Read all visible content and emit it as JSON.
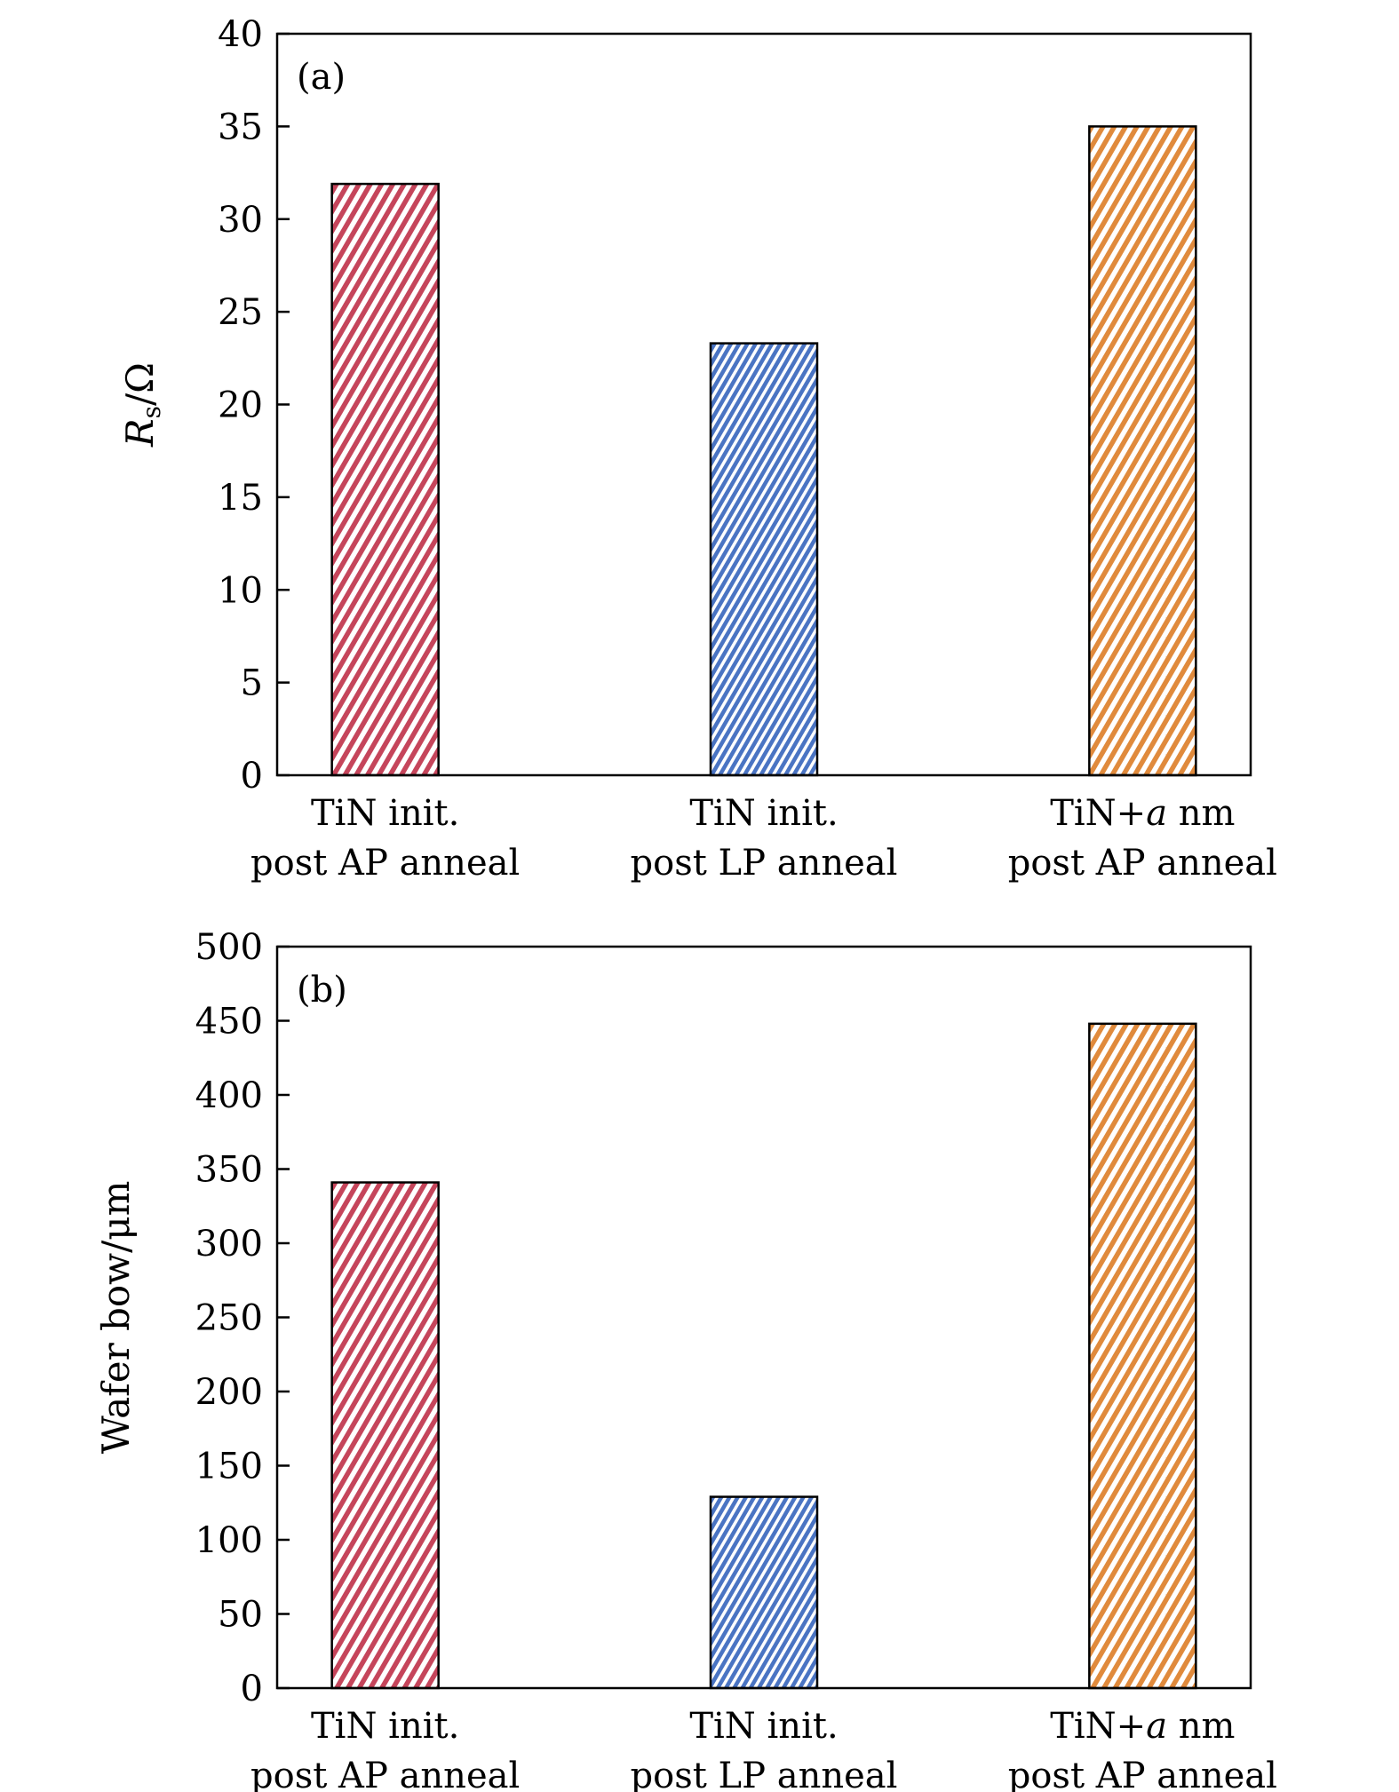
{
  "chart_data": [
    {
      "type": "bar",
      "panel_label": "(a)",
      "ylabel": "Rs/Ω",
      "ylabel_parts": {
        "symbol": "R",
        "subscript": "s",
        "unit": "/Ω"
      },
      "categories": [
        {
          "line1": "TiN init.",
          "line2": "post AP anneal"
        },
        {
          "line1": "TiN init.",
          "line2": "post LP anneal"
        },
        {
          "line1": "TiN+a nm",
          "line2": "post AP anneal"
        }
      ],
      "values": [
        31.9,
        23.3,
        35.0
      ],
      "colors": [
        "#c5455b",
        "#4a74c3",
        "#e08a3c"
      ],
      "hatch": [
        "diagonal",
        "diagonal-dense",
        "diagonal"
      ],
      "ylim": [
        0,
        40
      ],
      "yticks": [
        "0",
        "5",
        "10",
        "15",
        "20",
        "25",
        "30",
        "35",
        "40"
      ],
      "grid": false
    },
    {
      "type": "bar",
      "panel_label": "(b)",
      "ylabel": "Wafer bow/μm",
      "categories": [
        {
          "line1": "TiN init.",
          "line2": "post AP anneal"
        },
        {
          "line1": "TiN init.",
          "line2": "post LP anneal"
        },
        {
          "line1": "TiN+a nm",
          "line2": "post AP anneal"
        }
      ],
      "values": [
        341,
        129,
        448
      ],
      "colors": [
        "#c5455b",
        "#4a74c3",
        "#e08a3c"
      ],
      "hatch": [
        "diagonal",
        "diagonal-dense",
        "diagonal"
      ],
      "ylim": [
        0,
        500
      ],
      "yticks": [
        "0",
        "50",
        "100",
        "150",
        "200",
        "250",
        "300",
        "350",
        "400",
        "450",
        "500"
      ],
      "grid": false
    }
  ]
}
